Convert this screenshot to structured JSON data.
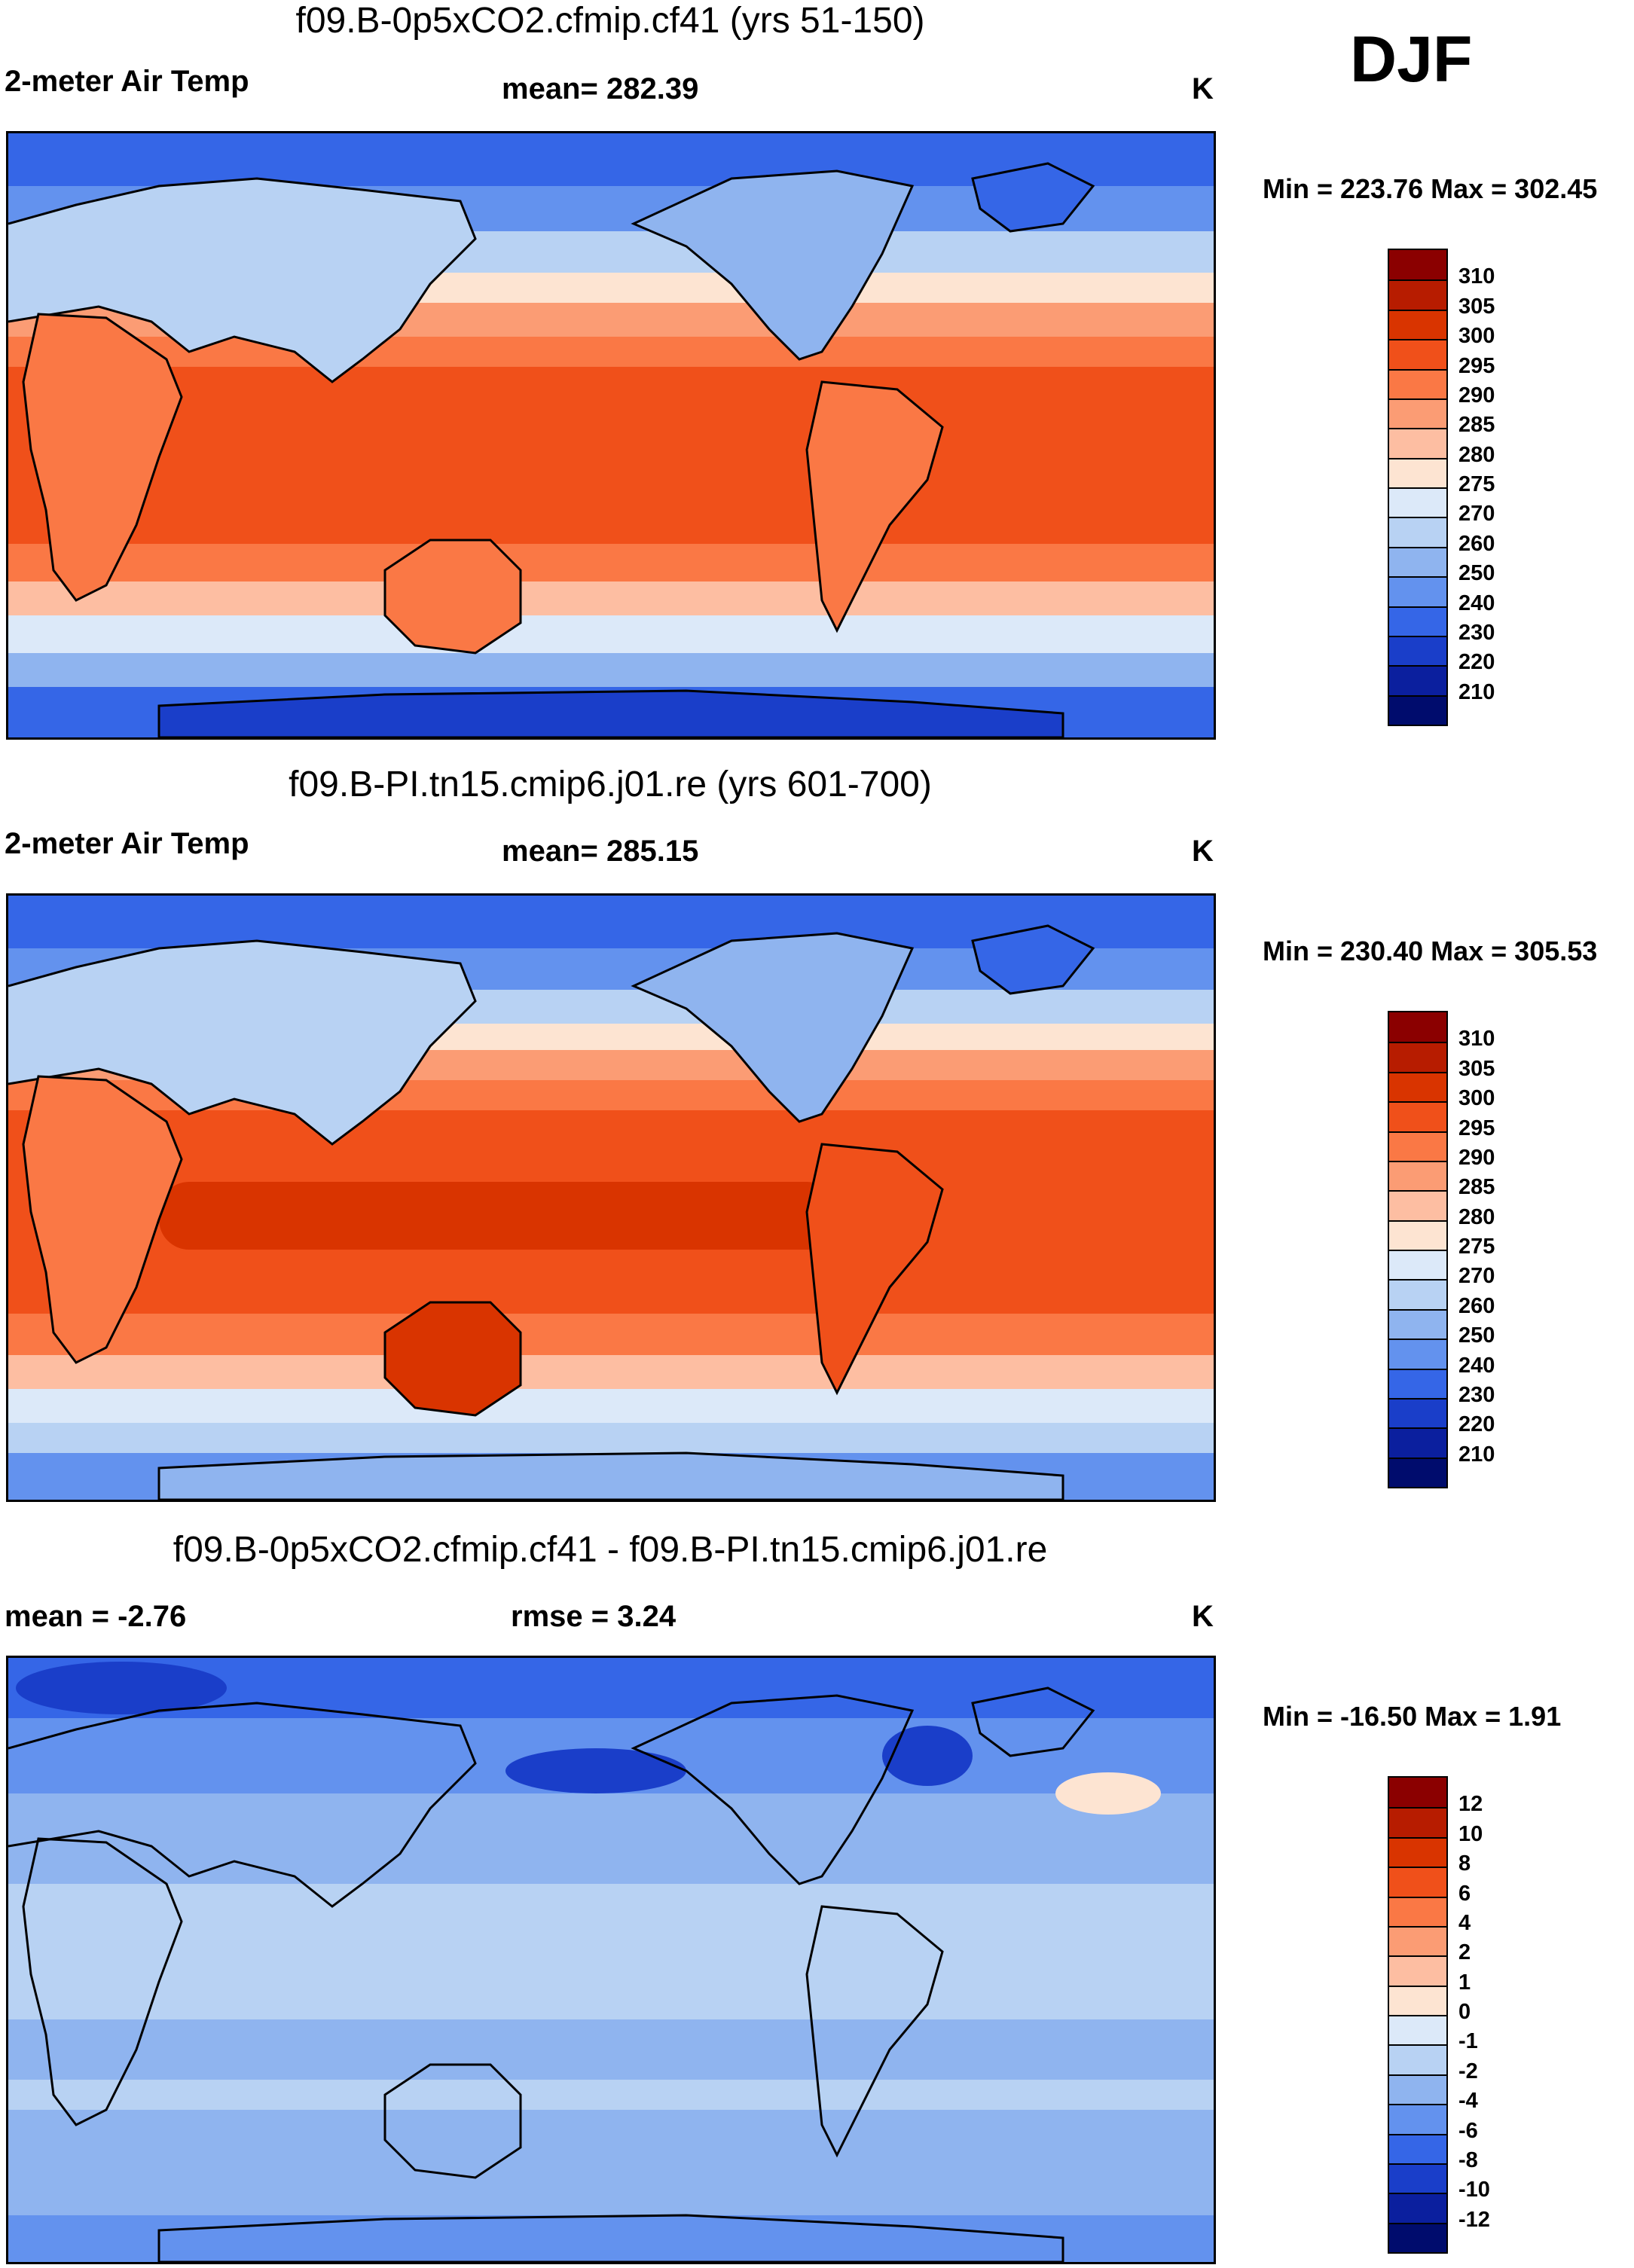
{
  "season": "DJF",
  "panels": [
    {
      "title": "f09.B-0p5xCO2.cfmip.cf41 (yrs 51-150)",
      "left_label": "2-meter Air Temp",
      "center_label": "mean= 282.39",
      "unit": "K",
      "minmax": "Min = 223.76 Max = 302.45",
      "colorbar": {
        "labels": [
          "310",
          "305",
          "300",
          "295",
          "290",
          "285",
          "280",
          "275",
          "270",
          "260",
          "250",
          "240",
          "230",
          "220",
          "210"
        ],
        "colors": [
          "#8b0000",
          "#b71c00",
          "#d93400",
          "#f0501a",
          "#fa7845",
          "#fb9c74",
          "#fdbea2",
          "#fde4d2",
          "#dce9f9",
          "#b8d2f3",
          "#8fb4ef",
          "#6392ee",
          "#3566e7",
          "#1a3ec9",
          "#0b1f9e",
          "#000c6d"
        ]
      },
      "map_palette": [
        "#000c6d",
        "#0b1f9e",
        "#1a3ec9",
        "#3566e7",
        "#6392ee",
        "#8fb4ef",
        "#b8d2f3",
        "#dce9f9",
        "#fde4d2",
        "#fdbea2",
        "#fb9c74",
        "#fa7845",
        "#f0501a",
        "#d93400",
        "#b71c00",
        "#8b0000"
      ]
    },
    {
      "title": "f09.B-PI.tn15.cmip6.j01.re (yrs 601-700)",
      "left_label": "2-meter Air Temp",
      "center_label": "mean= 285.15",
      "unit": "K",
      "minmax": "Min = 230.40 Max = 305.53",
      "colorbar": {
        "labels": [
          "310",
          "305",
          "300",
          "295",
          "290",
          "285",
          "280",
          "275",
          "270",
          "260",
          "250",
          "240",
          "230",
          "220",
          "210"
        ],
        "colors": [
          "#8b0000",
          "#b71c00",
          "#d93400",
          "#f0501a",
          "#fa7845",
          "#fb9c74",
          "#fdbea2",
          "#fde4d2",
          "#dce9f9",
          "#b8d2f3",
          "#8fb4ef",
          "#6392ee",
          "#3566e7",
          "#1a3ec9",
          "#0b1f9e",
          "#000c6d"
        ]
      }
    },
    {
      "title": "f09.B-0p5xCO2.cfmip.cf41 - f09.B-PI.tn15.cmip6.j01.re",
      "left_label": "mean =  -2.76",
      "center_label": "rmse =    3.24",
      "unit": "K",
      "minmax": "Min = -16.50 Max =   1.91",
      "colorbar": {
        "labels": [
          "12",
          "10",
          "8",
          "6",
          "4",
          "2",
          "1",
          "0",
          "-1",
          "-2",
          "-4",
          "-6",
          "-8",
          "-10",
          "-12"
        ],
        "colors": [
          "#8b0000",
          "#b71c00",
          "#d93400",
          "#f0501a",
          "#fa7845",
          "#fb9c74",
          "#fdbea2",
          "#fde4d2",
          "#dce9f9",
          "#b8d2f3",
          "#8fb4ef",
          "#6392ee",
          "#3566e7",
          "#1a3ec9",
          "#0b1f9e",
          "#000c6d"
        ]
      }
    }
  ]
}
